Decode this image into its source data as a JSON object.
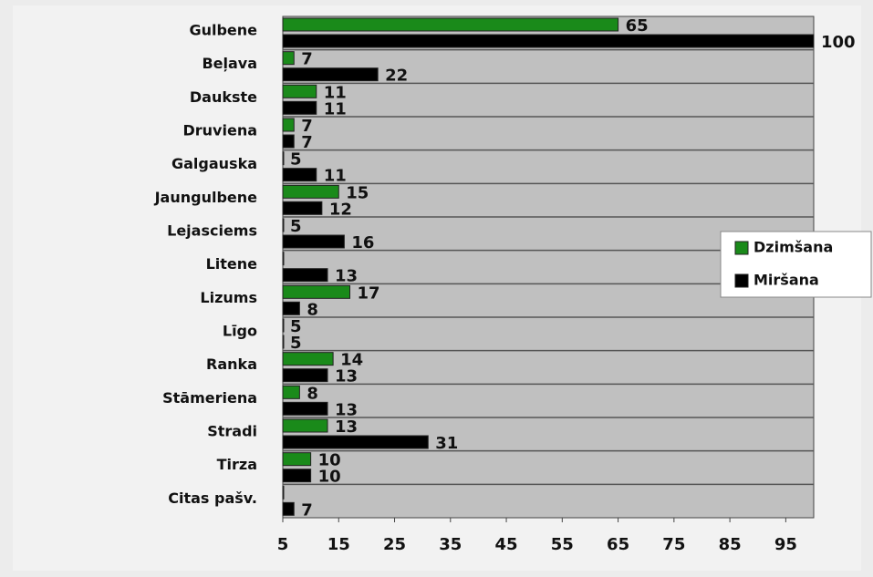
{
  "chart_data": {
    "type": "bar",
    "orientation": "horizontal",
    "categories": [
      "Gulbene",
      "Beļava",
      "Daukste",
      "Druviena",
      "Galgauska",
      "Jaungulbene",
      "Lejasciems",
      "Litene",
      "Lizums",
      "Līgo",
      "Ranka",
      "Stāmeriena",
      "Stradi",
      "Tirza",
      "Citas pašv."
    ],
    "series": [
      {
        "name": "Dzimšana",
        "color": "#1a8a1a",
        "values": [
          65,
          7,
          11,
          7,
          5,
          15,
          5,
          5,
          17,
          5,
          14,
          8,
          13,
          10,
          5
        ],
        "value_labels": [
          "65",
          "7",
          "11",
          "7",
          "5",
          "15",
          "5",
          null,
          "17",
          "5",
          "14",
          "8",
          "13",
          "10",
          null
        ]
      },
      {
        "name": "Miršana",
        "color": "#000000",
        "values": [
          100,
          22,
          11,
          7,
          11,
          12,
          16,
          13,
          8,
          5,
          13,
          13,
          31,
          10,
          7
        ]
      }
    ],
    "xlim": [
      5,
      100
    ],
    "xticks": [
      5,
      15,
      25,
      35,
      45,
      55,
      65,
      75,
      85,
      95
    ],
    "grid": true,
    "legend": "right"
  }
}
